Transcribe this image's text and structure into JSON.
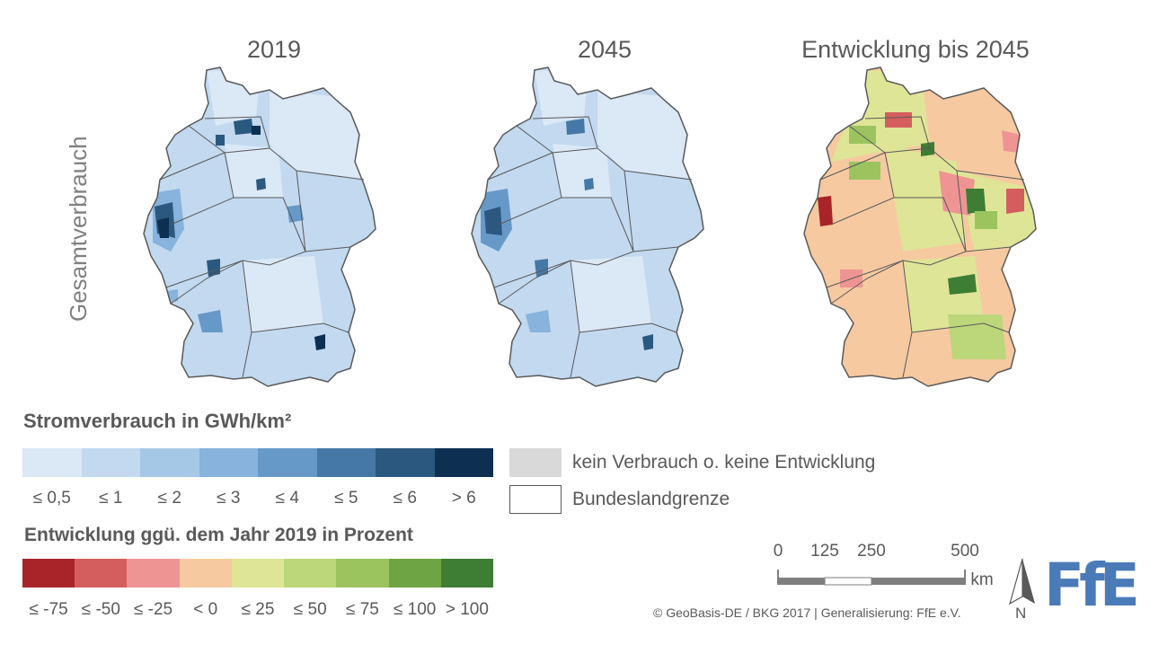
{
  "titles": {
    "map1": "2019",
    "map2": "2045",
    "map3": "Entwicklung bis 2045"
  },
  "row_label": "Gesamtverbrauch",
  "legend_consumption": {
    "title": "Stromverbrauch in GWh/km²",
    "colors": [
      "#dbe8f6",
      "#c2d9ef",
      "#a6c8e7",
      "#87b3dc",
      "#6799c8",
      "#4578a6",
      "#2a587f",
      "#0c2f52"
    ],
    "labels": [
      "≤ 0,5",
      "≤ 1",
      "≤ 2",
      "≤ 3",
      "≤ 4",
      "≤ 5",
      "≤ 6",
      "> 6"
    ]
  },
  "legend_change": {
    "title": "Entwicklung ggü. dem Jahr 2019 in Prozent",
    "colors": [
      "#a92429",
      "#d45e5d",
      "#ee9594",
      "#f6c9a1",
      "#dfe596",
      "#bcd67a",
      "#9bc45f",
      "#6fa445",
      "#3e7d34"
    ],
    "labels": [
      "≤ -75",
      "≤ -50",
      "≤ -25",
      "< 0",
      "≤ 25",
      "≤ 50",
      "≤ 75",
      "≤ 100",
      "> 100"
    ]
  },
  "key": {
    "no_data_color": "#d9d9d9",
    "no_data_label": "kein Verbrauch o. keine Entwicklung",
    "border_label": "Bundeslandgrenze"
  },
  "scalebar": {
    "ticks": [
      "0",
      "125",
      "250",
      "500"
    ],
    "unit": "km"
  },
  "north_label": "N",
  "logo_text": "FfE",
  "copyright": "© GeoBasis-DE / BKG 2017 | Generalisierung: FfE e.V."
}
